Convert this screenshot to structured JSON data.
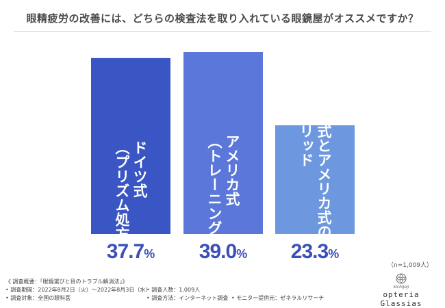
{
  "title": "眼精疲労の改善には、どちらの検査法を取り入れている眼鏡屋がオススメですか？",
  "sample_size": "（n=1,009人）",
  "chart_data": {
    "type": "bar",
    "categories": [
      "ドイツ式（プリズム処方重視）",
      "アメリカ式（トレーニング重視）",
      "ドイツ式とアメリカ式のハイブリッド"
    ],
    "label_columns": [
      [
        "ドイツ式",
        "（プリズム処方重視）"
      ],
      [
        "アメリカ式",
        "（トレーニング重視）"
      ],
      [
        "ドイツ式とアメリカ式の",
        "ハイブリッド"
      ]
    ],
    "values": [
      37.7,
      39.0,
      23.3
    ],
    "value_labels": [
      {
        "main": "37.7",
        "pct": "%"
      },
      {
        "main": "39.0",
        "pct": "%"
      },
      {
        "main": "23.3",
        "pct": "%"
      }
    ],
    "unit": "%",
    "ylim": [
      0,
      39.0
    ],
    "colors": [
      "#3a55c4",
      "#5b77d9",
      "#6d98e0"
    ],
    "value_color": "#3a4fb8"
  },
  "footer": {
    "overview": "《 調査概要：「眼鏡選びと目のトラブル解消法」》",
    "period": "• 調査期間：2022年8月2日（火）～2022年8月3日（水）",
    "target": "• 調査対象：全国の眼科医",
    "count": "• 調査人数：1,009人",
    "method": "• 調査方法：インターネット調査",
    "provider": "• モニター提供元：ゼネラルリサーチ"
  },
  "logo": {
    "small": "kichijoji",
    "name": "opteria Glassias"
  }
}
